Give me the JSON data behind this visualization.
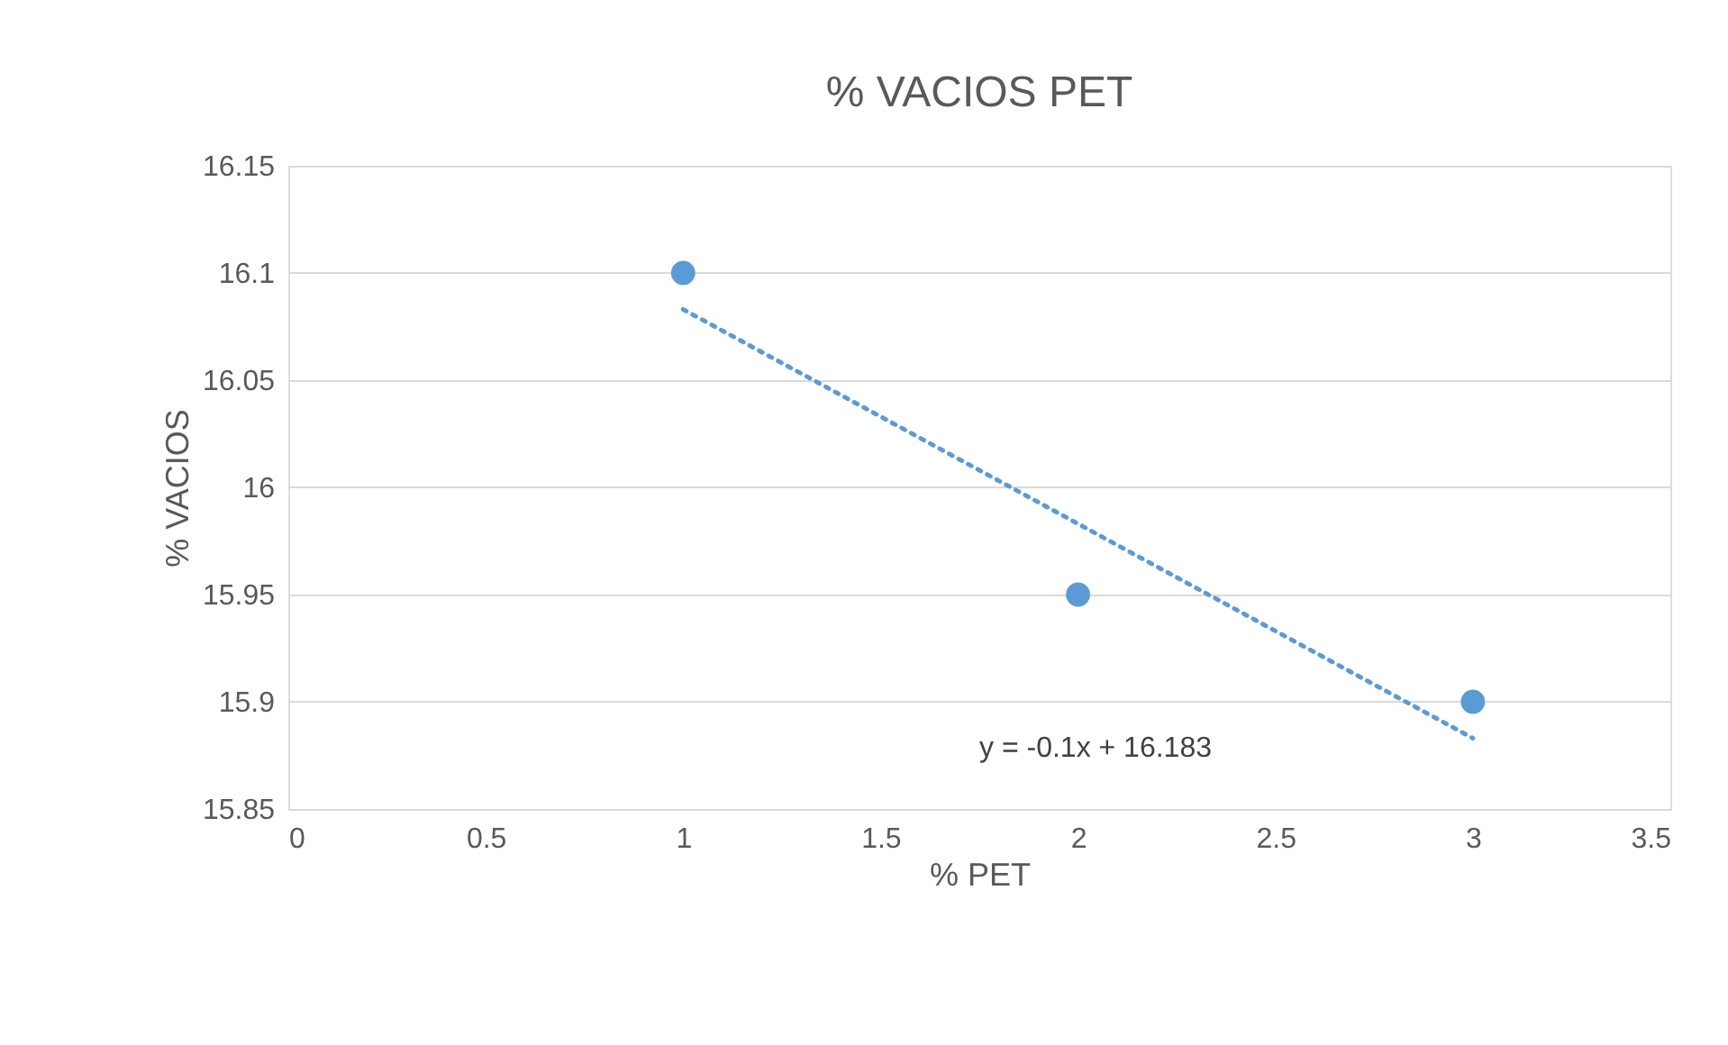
{
  "chart_data": {
    "type": "scatter",
    "title": "% VACIOS PET",
    "xlabel": "% PET",
    "ylabel": "% VACIOS",
    "series": [
      {
        "type": "scatter",
        "color": "#5b9bd5",
        "x": [
          1,
          2,
          3
        ],
        "values": [
          16.1,
          15.95,
          15.9
        ],
        "marker": "circle"
      },
      {
        "type": "line",
        "color": "#5b9bd5",
        "x": [
          1,
          3
        ],
        "values": [
          16.083,
          15.883
        ],
        "line_style": "dotted"
      }
    ],
    "annotations": [
      "y = -0.1x + 16.183"
    ],
    "xlim": [
      0,
      3.5
    ],
    "xticks": [
      0,
      0.5,
      1,
      1.5,
      2,
      2.5,
      3,
      3.5
    ],
    "ylim": [
      15.85,
      16.15
    ],
    "yticks": [
      15.85,
      15.9,
      15.95,
      16,
      16.05,
      16.1,
      16.15
    ],
    "grid": "y"
  }
}
